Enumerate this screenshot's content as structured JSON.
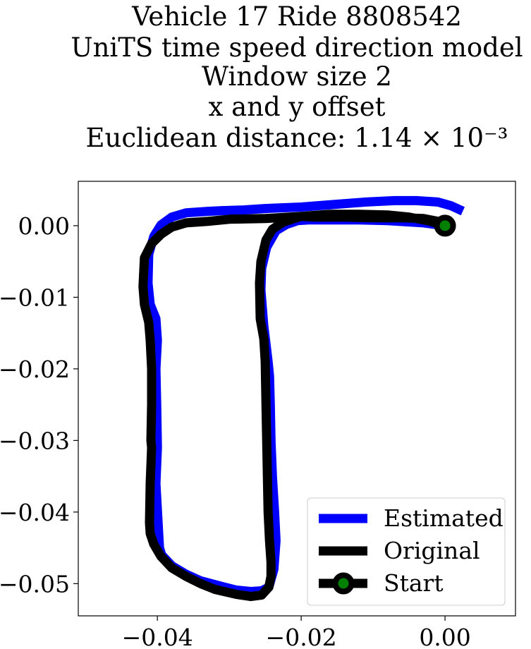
{
  "chart_data": {
    "type": "line",
    "title_lines": [
      "Vehicle 17 Ride 8808542",
      "UniTS time speed direction model",
      "Window size 2",
      "x and y offset",
      "Euclidean distance: 1.14 × 10⁻³"
    ],
    "xlabel": "",
    "ylabel": "",
    "xlim": [
      -0.051,
      0.0098
    ],
    "ylim": [
      -0.0545,
      0.0062
    ],
    "xticks": [
      -0.04,
      -0.02,
      0.0
    ],
    "xtick_labels": [
      "−0.04",
      "−0.02",
      "0.00"
    ],
    "yticks": [
      0.0,
      -0.01,
      -0.02,
      -0.03,
      -0.04,
      -0.05
    ],
    "ytick_labels": [
      "0.00",
      "−0.01",
      "−0.02",
      "−0.03",
      "−0.04",
      "−0.05"
    ],
    "grid": false,
    "legend_position": "lower-right",
    "series": [
      {
        "name": "Estimated",
        "color": "#0000ff",
        "x": [
          0.0019,
          0.0008,
          -0.001,
          -0.004,
          -0.007,
          -0.011,
          -0.015,
          -0.02,
          -0.025,
          -0.028,
          -0.031,
          -0.033,
          -0.036,
          -0.038,
          -0.0395,
          -0.0405,
          -0.0412,
          -0.0413,
          -0.041,
          -0.0402,
          -0.04,
          -0.0402,
          -0.0401,
          -0.04,
          -0.0402,
          -0.0399,
          -0.0397,
          -0.0394,
          -0.038,
          -0.036,
          -0.034,
          -0.031,
          -0.029,
          -0.027,
          -0.0255,
          -0.0245,
          -0.0238,
          -0.0235,
          -0.0237,
          -0.024,
          -0.0242,
          -0.0243,
          -0.0244,
          -0.0246,
          -0.0249,
          -0.0252,
          -0.0256,
          -0.0255,
          -0.0248,
          -0.0235,
          -0.022,
          -0.0205,
          -0.019,
          -0.016,
          -0.012,
          -0.008,
          -0.003,
          0.0
        ],
        "y": [
          0.0023,
          0.0028,
          0.0033,
          0.0035,
          0.0035,
          0.0033,
          0.003,
          0.0026,
          0.0024,
          0.0022,
          0.0021,
          0.002,
          0.0018,
          0.0012,
          0.0001,
          -0.0015,
          -0.004,
          -0.008,
          -0.011,
          -0.013,
          -0.016,
          -0.02,
          -0.025,
          -0.031,
          -0.036,
          -0.0415,
          -0.045,
          -0.046,
          -0.0475,
          -0.0487,
          -0.0496,
          -0.0504,
          -0.0509,
          -0.0511,
          -0.051,
          -0.0505,
          -0.048,
          -0.044,
          -0.04,
          -0.035,
          -0.03,
          -0.025,
          -0.021,
          -0.019,
          -0.0165,
          -0.014,
          -0.009,
          -0.006,
          -0.003,
          -0.0007,
          0.0002,
          0.0007,
          0.0008,
          0.0008,
          0.0008,
          0.0007,
          0.0004,
          0.0
        ]
      },
      {
        "name": "Original",
        "color": "#000000",
        "x": [
          0.0,
          -0.002,
          -0.005,
          -0.008,
          -0.012,
          -0.016,
          -0.02,
          -0.025,
          -0.03,
          -0.033,
          -0.036,
          -0.038,
          -0.0395,
          -0.0408,
          -0.0418,
          -0.042,
          -0.0418,
          -0.0412,
          -0.041,
          -0.0408,
          -0.0408,
          -0.0409,
          -0.0408,
          -0.041,
          -0.0411,
          -0.041,
          -0.0405,
          -0.0395,
          -0.038,
          -0.036,
          -0.034,
          -0.032,
          -0.029,
          -0.027,
          -0.0255,
          -0.0245,
          -0.0242,
          -0.0242,
          -0.0244,
          -0.0246,
          -0.0247,
          -0.0248,
          -0.0249,
          -0.025,
          -0.0252,
          -0.0257,
          -0.0258,
          -0.0256,
          -0.0249,
          -0.024,
          -0.0225,
          -0.021,
          -0.02,
          -0.018,
          -0.014,
          -0.01,
          -0.006,
          -0.003,
          -0.001,
          0.0
        ],
        "y": [
          0.0,
          0.0006,
          0.0012,
          0.0015,
          0.0016,
          0.0016,
          0.0013,
          0.001,
          0.0009,
          0.0006,
          0.0004,
          -0.0002,
          -0.0012,
          -0.0025,
          -0.0045,
          -0.0085,
          -0.011,
          -0.0135,
          -0.016,
          -0.02,
          -0.025,
          -0.03,
          -0.031,
          -0.036,
          -0.0415,
          -0.043,
          -0.0445,
          -0.0462,
          -0.0478,
          -0.049,
          -0.05,
          -0.0508,
          -0.0515,
          -0.0518,
          -0.0516,
          -0.0505,
          -0.049,
          -0.047,
          -0.044,
          -0.04,
          -0.035,
          -0.03,
          -0.025,
          -0.019,
          -0.0158,
          -0.013,
          -0.008,
          -0.005,
          -0.002,
          -0.0005,
          0.0005,
          0.001,
          0.0013,
          0.0012,
          0.0012,
          0.0011,
          0.0011,
          0.001,
          0.0006,
          0.0
        ]
      },
      {
        "name": "Start",
        "color": "#000000",
        "marker_color": "#008000",
        "x": [
          0.0
        ],
        "y": [
          0.0
        ]
      }
    ]
  }
}
